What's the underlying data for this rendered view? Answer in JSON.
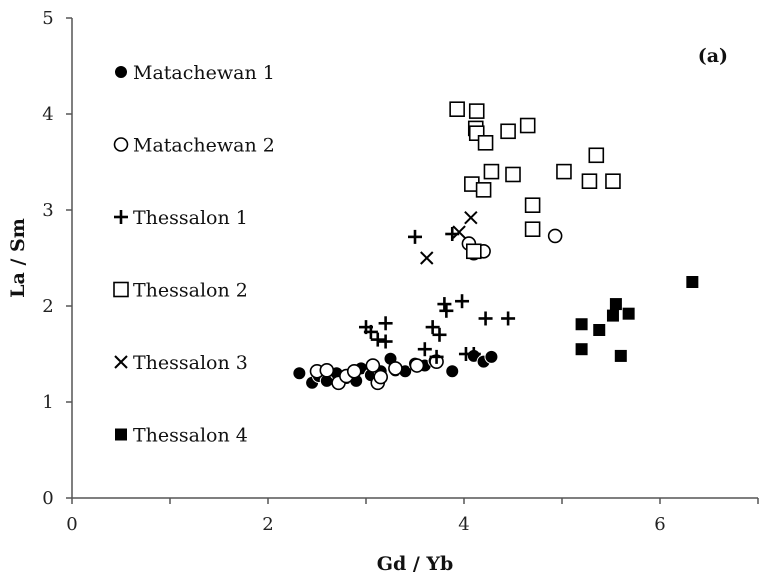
{
  "chart_data": {
    "type": "scatter",
    "panel_label": "(a)",
    "xlabel": "Gd / Yb",
    "ylabel": "La / Sm",
    "xlim": [
      0,
      7
    ],
    "ylim": [
      0,
      5
    ],
    "xticks": [
      "0",
      "2",
      "4",
      "6"
    ],
    "yticks": [
      "0",
      "1",
      "2",
      "3",
      "4",
      "5"
    ],
    "grid": false,
    "legend_position": "left",
    "series": [
      {
        "name": "Matachewan 1",
        "marker": "filled-circle",
        "color": "#000000",
        "points": [
          [
            2.32,
            1.3
          ],
          [
            2.45,
            1.2
          ],
          [
            2.52,
            1.27
          ],
          [
            2.6,
            1.22
          ],
          [
            2.7,
            1.3
          ],
          [
            2.8,
            1.25
          ],
          [
            2.9,
            1.22
          ],
          [
            2.95,
            1.35
          ],
          [
            3.05,
            1.28
          ],
          [
            3.15,
            1.32
          ],
          [
            3.25,
            1.45
          ],
          [
            3.3,
            1.33
          ],
          [
            3.4,
            1.32
          ],
          [
            3.5,
            1.4
          ],
          [
            3.6,
            1.38
          ],
          [
            3.7,
            1.43
          ],
          [
            3.88,
            1.32
          ],
          [
            4.1,
            1.48
          ],
          [
            4.2,
            1.42
          ],
          [
            4.28,
            1.47
          ]
        ]
      },
      {
        "name": "Matachewan 2",
        "marker": "open-circle",
        "color": "#000000",
        "points": [
          [
            2.5,
            1.32
          ],
          [
            2.6,
            1.33
          ],
          [
            2.72,
            1.2
          ],
          [
            2.8,
            1.27
          ],
          [
            2.88,
            1.32
          ],
          [
            3.07,
            1.38
          ],
          [
            3.12,
            1.2
          ],
          [
            3.15,
            1.26
          ],
          [
            3.3,
            1.35
          ],
          [
            3.52,
            1.38
          ],
          [
            3.72,
            1.42
          ],
          [
            4.05,
            2.65
          ],
          [
            4.1,
            2.55
          ],
          [
            4.2,
            2.57
          ],
          [
            4.93,
            2.73
          ]
        ]
      },
      {
        "name": "Thessalon 1",
        "marker": "plus",
        "color": "#000000",
        "points": [
          [
            3.0,
            1.78
          ],
          [
            3.05,
            1.73
          ],
          [
            3.12,
            1.65
          ],
          [
            3.2,
            1.82
          ],
          [
            3.2,
            1.63
          ],
          [
            3.5,
            2.72
          ],
          [
            3.6,
            1.55
          ],
          [
            3.68,
            1.78
          ],
          [
            3.72,
            1.47
          ],
          [
            3.75,
            1.7
          ],
          [
            3.8,
            2.02
          ],
          [
            3.82,
            1.95
          ],
          [
            3.88,
            2.75
          ],
          [
            3.98,
            2.05
          ],
          [
            4.02,
            1.5
          ],
          [
            4.1,
            1.5
          ],
          [
            4.22,
            1.87
          ],
          [
            4.45,
            1.87
          ]
        ]
      },
      {
        "name": "Thessalon 2",
        "marker": "open-square",
        "color": "#000000",
        "points": [
          [
            3.93,
            4.05
          ],
          [
            4.13,
            4.03
          ],
          [
            4.12,
            3.85
          ],
          [
            4.13,
            3.8
          ],
          [
            4.22,
            3.7
          ],
          [
            4.45,
            3.82
          ],
          [
            4.65,
            3.88
          ],
          [
            4.28,
            3.4
          ],
          [
            4.5,
            3.37
          ],
          [
            4.08,
            3.27
          ],
          [
            4.2,
            3.21
          ],
          [
            5.02,
            3.4
          ],
          [
            5.28,
            3.3
          ],
          [
            5.35,
            3.57
          ],
          [
            5.52,
            3.3
          ],
          [
            4.7,
            3.05
          ],
          [
            4.7,
            2.8
          ],
          [
            4.1,
            2.57
          ]
        ]
      },
      {
        "name": "Thessalon 3",
        "marker": "cross",
        "color": "#000000",
        "points": [
          [
            3.62,
            2.5
          ],
          [
            3.95,
            2.77
          ],
          [
            4.07,
            2.92
          ]
        ]
      },
      {
        "name": "Thessalon 4",
        "marker": "filled-square",
        "color": "#000000",
        "points": [
          [
            5.2,
            1.81
          ],
          [
            5.2,
            1.55
          ],
          [
            5.38,
            1.75
          ],
          [
            5.52,
            1.9
          ],
          [
            5.55,
            2.02
          ],
          [
            5.6,
            1.48
          ],
          [
            5.68,
            1.92
          ],
          [
            6.33,
            2.25
          ]
        ]
      }
    ]
  }
}
